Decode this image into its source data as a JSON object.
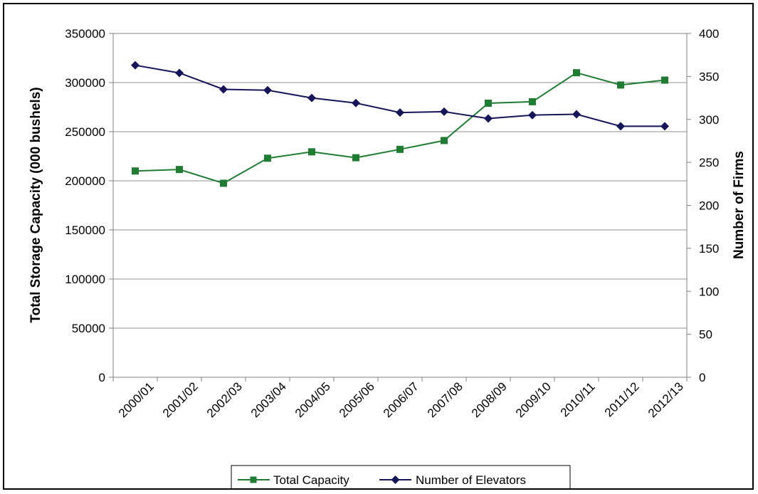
{
  "chart_data": {
    "type": "line",
    "title": "",
    "categories": [
      "2000/01",
      "2001/02",
      "2002/03",
      "2003/04",
      "2004/05",
      "2005/06",
      "2006/07",
      "2007/08",
      "2008/09",
      "2009/10",
      "2010/11",
      "2011/12",
      "2012/13"
    ],
    "series": [
      {
        "name": "Total Capacity",
        "axis": "left",
        "color": "#1e7d33",
        "marker": "square",
        "values": [
          210000,
          211500,
          197500,
          223000,
          229500,
          223500,
          232000,
          241000,
          279000,
          280500,
          310000,
          297500,
          302500
        ]
      },
      {
        "name": "Number of Elevators",
        "axis": "right",
        "color": "#15155a",
        "marker": "diamond",
        "values": [
          363,
          354,
          335,
          334,
          325,
          319,
          308,
          309,
          301,
          305,
          306,
          292,
          292
        ]
      }
    ],
    "ylabel_left": "Total Storage Capacity (000 bushels)",
    "ylabel_right": "Number of Firms",
    "ylim_left": [
      0,
      350000
    ],
    "yticks_left": [
      "0",
      "50000",
      "100000",
      "150000",
      "200000",
      "250000",
      "300000",
      "350000"
    ],
    "ylim_right": [
      0,
      400
    ],
    "yticks_right": [
      "0",
      "50",
      "100",
      "150",
      "200",
      "250",
      "300",
      "350",
      "400"
    ],
    "grid": true,
    "legend_position": "bottom"
  }
}
